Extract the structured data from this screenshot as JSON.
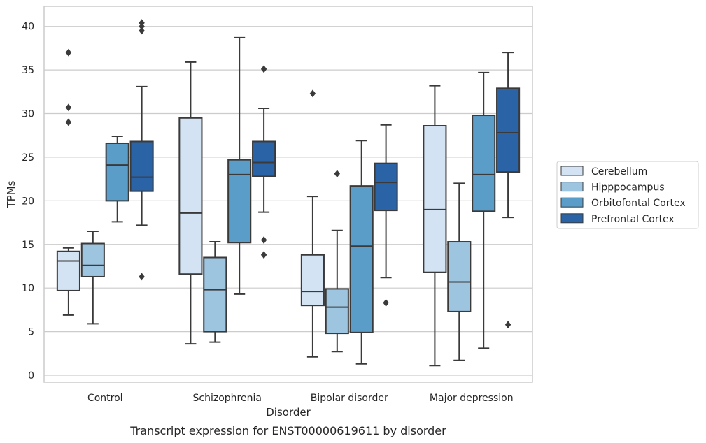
{
  "chart_data": {
    "type": "boxplot",
    "xlabel": "Disorder",
    "ylabel": "TPMs",
    "caption": "Transcript expression for ENST00000619611 by disorder",
    "ylim": [
      -0.8,
      42.3
    ],
    "yticks": [
      "0",
      "5",
      "10",
      "15",
      "20",
      "25",
      "30",
      "35",
      "40"
    ],
    "grid": "horizontal",
    "legend_position": "right",
    "categories": [
      "Control",
      "Schizophrenia",
      "Bipolar disorder",
      "Major depression"
    ],
    "series": [
      {
        "name": "Cerebellum",
        "color": "#d4e3f3",
        "boxes": [
          {
            "whisker_low": 6.9,
            "q1": 9.7,
            "median": 13.1,
            "q3": 14.2,
            "whisker_high": 14.6,
            "outliers": [
              29.0,
              30.7,
              37.0
            ]
          },
          {
            "whisker_low": 3.6,
            "q1": 11.6,
            "median": 18.6,
            "q3": 29.5,
            "whisker_high": 35.9,
            "outliers": []
          },
          {
            "whisker_low": 2.1,
            "q1": 8.0,
            "median": 9.6,
            "q3": 13.8,
            "whisker_high": 20.5,
            "outliers": [
              32.3
            ]
          },
          {
            "whisker_low": 1.1,
            "q1": 11.8,
            "median": 19.0,
            "q3": 28.6,
            "whisker_high": 33.2,
            "outliers": []
          }
        ]
      },
      {
        "name": "Hipppocampus",
        "color": "#9ec5e0",
        "boxes": [
          {
            "whisker_low": 5.9,
            "q1": 11.3,
            "median": 12.6,
            "q3": 15.1,
            "whisker_high": 16.5,
            "outliers": []
          },
          {
            "whisker_low": 3.8,
            "q1": 5.0,
            "median": 9.8,
            "q3": 13.5,
            "whisker_high": 15.3,
            "outliers": []
          },
          {
            "whisker_low": 2.7,
            "q1": 4.8,
            "median": 7.8,
            "q3": 9.9,
            "whisker_high": 16.6,
            "outliers": [
              23.1
            ]
          },
          {
            "whisker_low": 1.7,
            "q1": 7.3,
            "median": 10.7,
            "q3": 15.3,
            "whisker_high": 22.0,
            "outliers": []
          }
        ]
      },
      {
        "name": "Orbitofontal Cortex",
        "color": "#5a9dc9",
        "boxes": [
          {
            "whisker_low": 17.6,
            "q1": 20.0,
            "median": 24.1,
            "q3": 26.6,
            "whisker_high": 27.4,
            "outliers": []
          },
          {
            "whisker_low": 9.3,
            "q1": 15.2,
            "median": 23.0,
            "q3": 24.7,
            "whisker_high": 38.7,
            "outliers": []
          },
          {
            "whisker_low": 1.3,
            "q1": 4.9,
            "median": 14.8,
            "q3": 21.7,
            "whisker_high": 26.9,
            "outliers": []
          },
          {
            "whisker_low": 3.1,
            "q1": 18.8,
            "median": 23.0,
            "q3": 29.8,
            "whisker_high": 34.7,
            "outliers": []
          }
        ]
      },
      {
        "name": "Prefrontal Cortex",
        "color": "#2a64a6",
        "boxes": [
          {
            "whisker_low": 17.2,
            "q1": 21.1,
            "median": 22.7,
            "q3": 26.8,
            "whisker_high": 33.1,
            "outliers": [
              11.3,
              39.5,
              40.0,
              40.4
            ]
          },
          {
            "whisker_low": 18.7,
            "q1": 22.8,
            "median": 24.4,
            "q3": 26.8,
            "whisker_high": 30.6,
            "outliers": [
              13.8,
              15.5,
              35.1
            ]
          },
          {
            "whisker_low": 11.2,
            "q1": 18.9,
            "median": 22.1,
            "q3": 24.3,
            "whisker_high": 28.7,
            "outliers": [
              8.3
            ]
          },
          {
            "whisker_low": 18.1,
            "q1": 23.3,
            "median": 27.8,
            "q3": 32.9,
            "whisker_high": 37.0,
            "outliers": [
              5.8
            ]
          }
        ]
      }
    ]
  }
}
